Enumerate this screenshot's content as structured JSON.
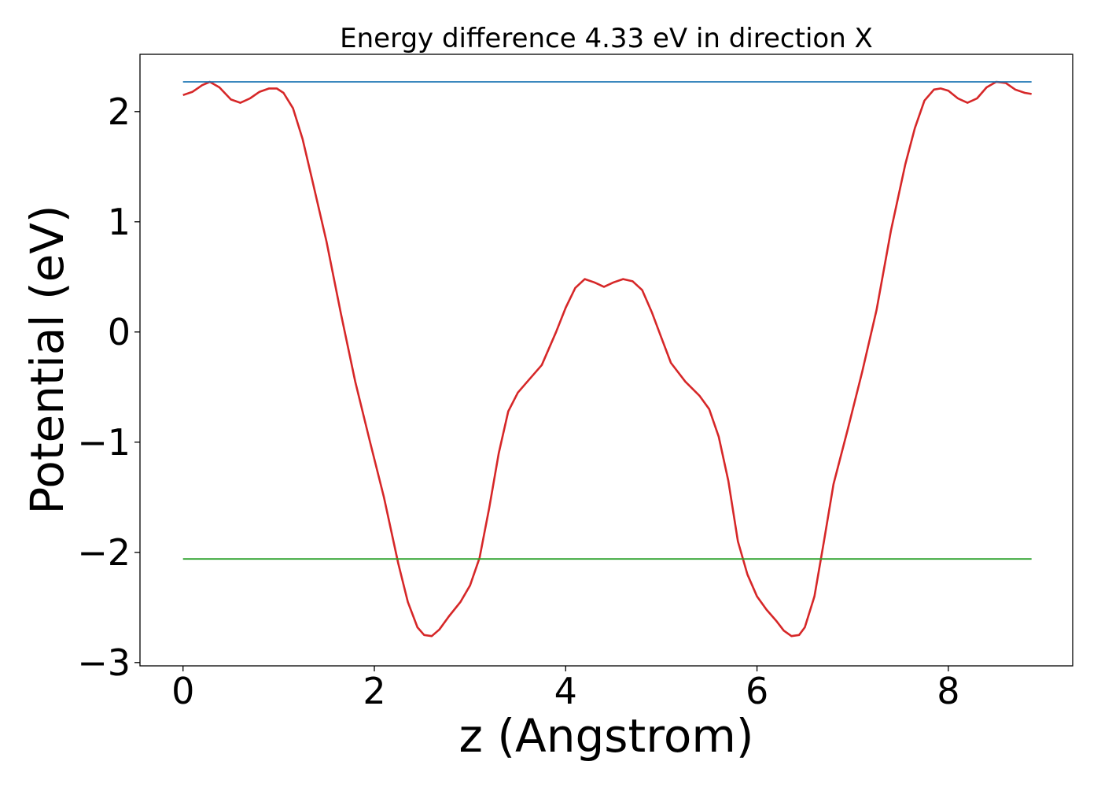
{
  "chart_data": {
    "type": "line",
    "title": "Energy difference 4.33 eV in direction X",
    "xlabel": "z (Angstrom)",
    "ylabel": "Potential (eV)",
    "xlim": [
      -0.45,
      9.3
    ],
    "ylim": [
      -3.03,
      2.52
    ],
    "xticks": [
      0,
      2,
      4,
      6,
      8
    ],
    "xtick_labels": [
      "0",
      "2",
      "4",
      "6",
      "8"
    ],
    "yticks": [
      -3,
      -2,
      -1,
      0,
      1,
      2
    ],
    "ytick_labels": [
      "−3",
      "−2",
      "−1",
      "0",
      "1",
      "2"
    ],
    "grid": false,
    "legend": "none",
    "series": [
      {
        "color": "#d62728",
        "x": [
          0,
          0.1,
          0.2,
          0.28,
          0.38,
          0.5,
          0.6,
          0.7,
          0.8,
          0.9,
          0.98,
          1.05,
          1.15,
          1.25,
          1.35,
          1.5,
          1.65,
          1.8,
          1.95,
          2.1,
          2.25,
          2.35,
          2.45,
          2.52,
          2.6,
          2.68,
          2.78,
          2.9,
          3.0,
          3.1,
          3.2,
          3.3,
          3.4,
          3.5,
          3.6,
          3.75,
          3.9,
          4.0,
          4.1,
          4.2,
          4.3,
          4.4,
          4.5,
          4.6,
          4.7,
          4.8,
          4.9,
          5.0,
          5.1,
          5.25,
          5.4,
          5.5,
          5.6,
          5.7,
          5.8,
          5.9,
          6.0,
          6.1,
          6.2,
          6.28,
          6.36,
          6.44,
          6.5,
          6.6,
          6.7,
          6.8,
          6.95,
          7.1,
          7.25,
          7.4,
          7.55,
          7.65,
          7.75,
          7.85,
          7.92,
          8.0,
          8.1,
          8.2,
          8.3,
          8.4,
          8.5,
          8.6,
          8.7,
          8.8,
          8.87
        ],
        "y": [
          2.15,
          2.18,
          2.24,
          2.27,
          2.22,
          2.11,
          2.08,
          2.12,
          2.18,
          2.21,
          2.21,
          2.17,
          2.03,
          1.75,
          1.38,
          0.82,
          0.17,
          -0.45,
          -0.98,
          -1.5,
          -2.1,
          -2.45,
          -2.68,
          -2.75,
          -2.76,
          -2.7,
          -2.58,
          -2.45,
          -2.3,
          -2.05,
          -1.6,
          -1.1,
          -0.72,
          -0.55,
          -0.45,
          -0.3,
          0.0,
          0.22,
          0.4,
          0.48,
          0.45,
          0.41,
          0.45,
          0.48,
          0.46,
          0.38,
          0.18,
          -0.05,
          -0.28,
          -0.45,
          -0.58,
          -0.7,
          -0.95,
          -1.35,
          -1.9,
          -2.2,
          -2.4,
          -2.52,
          -2.62,
          -2.71,
          -2.76,
          -2.75,
          -2.68,
          -2.4,
          -1.9,
          -1.38,
          -0.88,
          -0.36,
          0.2,
          0.92,
          1.52,
          1.85,
          2.1,
          2.2,
          2.21,
          2.19,
          2.12,
          2.08,
          2.12,
          2.22,
          2.27,
          2.26,
          2.2,
          2.17,
          2.16
        ]
      },
      {
        "color": "#1f77b4",
        "x": [
          0,
          8.87
        ],
        "y": [
          2.27,
          2.27
        ]
      },
      {
        "color": "#2ca02c",
        "x": [
          0,
          8.87
        ],
        "y": [
          -2.06,
          -2.06
        ]
      }
    ]
  }
}
